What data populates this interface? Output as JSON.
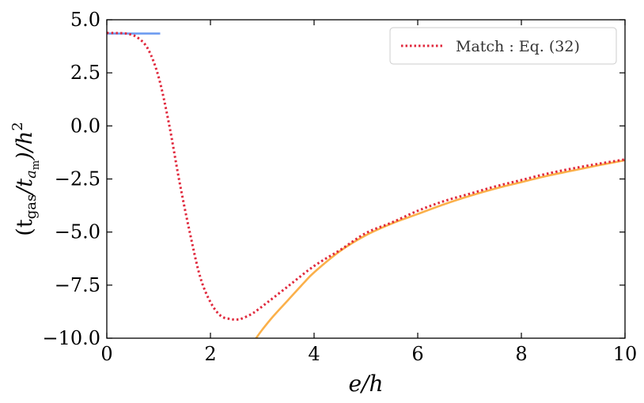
{
  "chart_data": {
    "type": "line",
    "xlabel": "e/h",
    "ylabel_parts": {
      "open": "(t",
      "sub1": "gas",
      "mid": "/t",
      "sub2a": "a",
      "sub2b": "m",
      "close": ")/h",
      "sup": "2"
    },
    "xlim": [
      0,
      10
    ],
    "ylim": [
      -10,
      5
    ],
    "xticks": [
      0,
      2,
      4,
      6,
      8,
      10
    ],
    "xtick_labels": [
      "0",
      "2",
      "4",
      "6",
      "8",
      "10"
    ],
    "yticks": [
      5,
      2.5,
      0,
      -2.5,
      -5,
      -7.5,
      -10
    ],
    "ytick_labels": [
      "5.0",
      "2.5",
      "0.0",
      "−2.5",
      "−5.0",
      "−7.5",
      "−10.0"
    ],
    "grid": false,
    "legend_position": "upper right",
    "series": [
      {
        "name": "Match : Eq. (32)",
        "style": "dotted",
        "color": "#e0283c",
        "x": [
          0,
          0.2,
          0.4,
          0.6,
          0.8,
          1.0,
          1.2,
          1.4,
          1.6,
          1.8,
          2.0,
          2.2,
          2.4,
          2.5,
          2.6,
          2.8,
          3.0,
          3.5,
          4.0,
          4.5,
          5.0,
          5.5,
          6.0,
          6.5,
          7.0,
          7.5,
          8.0,
          8.5,
          9.0,
          9.5,
          10.0
        ],
        "y": [
          4.38,
          4.37,
          4.34,
          4.15,
          3.6,
          2.3,
          0.1,
          -2.6,
          -5.0,
          -7.1,
          -8.3,
          -8.95,
          -9.1,
          -9.12,
          -9.08,
          -8.85,
          -8.5,
          -7.55,
          -6.6,
          -5.85,
          -5.05,
          -4.55,
          -4.0,
          -3.55,
          -3.2,
          -2.85,
          -2.55,
          -2.25,
          -2.0,
          -1.78,
          -1.58
        ]
      },
      {
        "name": "",
        "style": "solid",
        "color": "#fbb04a",
        "x": [
          2.88,
          3.0,
          3.2,
          3.5,
          3.8,
          4.0,
          4.5,
          5.0,
          5.5,
          6.0,
          6.5,
          7.0,
          7.5,
          8.0,
          8.5,
          9.0,
          9.5,
          10.0
        ],
        "y": [
          -10.0,
          -9.6,
          -9.0,
          -8.2,
          -7.4,
          -6.9,
          -5.9,
          -5.15,
          -4.6,
          -4.15,
          -3.7,
          -3.3,
          -2.95,
          -2.65,
          -2.35,
          -2.1,
          -1.85,
          -1.62
        ]
      },
      {
        "name": "",
        "style": "solid",
        "color": "#6d9bf0",
        "x": [
          0,
          1.03
        ],
        "y": [
          4.35,
          4.35
        ]
      }
    ]
  }
}
